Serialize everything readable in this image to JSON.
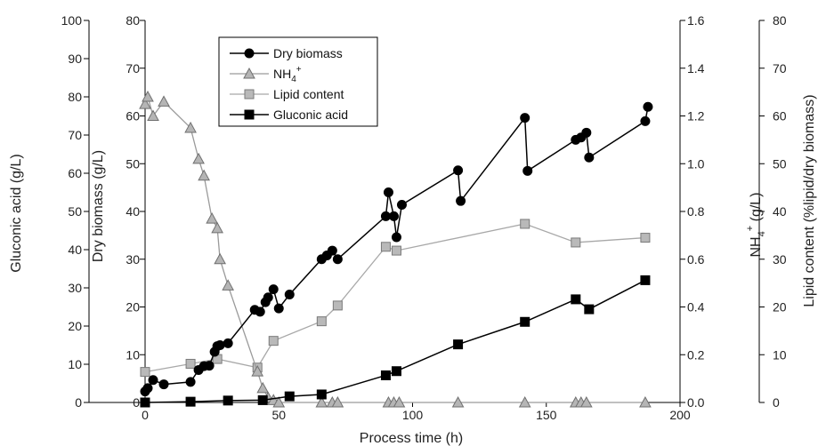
{
  "chart_data": {
    "type": "line",
    "xlabel": "Process time (h)",
    "xlim": [
      0,
      200
    ],
    "xticks": [
      "0",
      "50",
      "100",
      "150",
      "200"
    ],
    "axes": {
      "dry_biomass": {
        "label": "Dry biomass (g/L)",
        "ylim": [
          0,
          80
        ],
        "ticks": [
          "0",
          "10",
          "20",
          "30",
          "40",
          "50",
          "60",
          "70",
          "80"
        ]
      },
      "nh4": {
        "label": "NH",
        "label_sub": "4",
        "label_sup": "+",
        "label_suffix": " (g/L)",
        "ylim": [
          0,
          1.6
        ],
        "ticks": [
          "0.0",
          "0.2",
          "0.4",
          "0.6",
          "0.8",
          "1.0",
          "1.2",
          "1.4",
          "1.6"
        ]
      },
      "gluconic_acid": {
        "label": "Gluconic acid (g/L)",
        "ylim": [
          0,
          100
        ],
        "ticks": [
          "0",
          "10",
          "20",
          "30",
          "40",
          "50",
          "60",
          "70",
          "80",
          "90",
          "100"
        ]
      },
      "lipid_content": {
        "label": "Lipid content (%lipid/dry biomass)",
        "ylim": [
          0,
          80
        ],
        "ticks": [
          "0",
          "10",
          "20",
          "30",
          "40",
          "50",
          "60",
          "70",
          "80"
        ]
      }
    },
    "series": [
      {
        "name": "Dry biomass",
        "axis": "dry_biomass",
        "marker": "circle",
        "color": "#000000",
        "x": [
          0,
          1,
          3,
          7,
          17,
          20,
          22,
          24,
          26,
          27,
          28,
          31,
          41,
          43,
          45,
          46,
          48,
          50,
          54,
          66,
          68,
          70,
          72,
          90,
          91,
          93,
          94,
          96,
          117,
          118,
          142,
          143,
          161,
          163,
          165,
          166,
          187,
          188
        ],
        "y": [
          2.3,
          3,
          4.7,
          3.8,
          4.3,
          6.8,
          7.6,
          7.7,
          10.6,
          11.8,
          12,
          12.4,
          19.4,
          19,
          21,
          22,
          23.7,
          19.7,
          22.6,
          30,
          30.8,
          31.8,
          30,
          39,
          44,
          39,
          34.6,
          41.4,
          48.6,
          42.2,
          59.6,
          48.5,
          55,
          55.5,
          56.5,
          51.3,
          58.9,
          61.9
        ]
      },
      {
        "name": "NH",
        "name_sub": "4",
        "name_sup": "+",
        "axis": "nh4",
        "marker": "triangle",
        "color": "#aaaaaa",
        "x": [
          0,
          1,
          3,
          7,
          17,
          20,
          22,
          25,
          27,
          28,
          31,
          42,
          44,
          46,
          48,
          50,
          66,
          70,
          72,
          91,
          93,
          95,
          117,
          142,
          161,
          163,
          165,
          187
        ],
        "y": [
          1.25,
          1.28,
          1.2,
          1.26,
          1.15,
          1.02,
          0.95,
          0.77,
          0.73,
          0.6,
          0.49,
          0.13,
          0.06,
          0.02,
          0.01,
          0.0,
          0.0,
          0.0,
          0.0,
          0.0,
          0.0,
          0.0,
          0.0,
          0.0,
          0.0,
          0.0,
          0.0,
          0.0
        ]
      },
      {
        "name": "Lipid content",
        "axis": "lipid_content",
        "marker": "square",
        "color": "#999999",
        "x": [
          0,
          17,
          27,
          42,
          48,
          66,
          72,
          90,
          94,
          142,
          161,
          187
        ],
        "y": [
          6.4,
          8.1,
          9.1,
          7.3,
          12.9,
          17,
          20.3,
          32.6,
          31.8,
          37.4,
          33.5,
          34.5
        ]
      },
      {
        "name": "Gluconic acid",
        "axis": "gluconic_acid",
        "marker": "square",
        "color": "#000000",
        "x": [
          0,
          17,
          31,
          44,
          54,
          66,
          90,
          94,
          117,
          142,
          161,
          166,
          187
        ],
        "y": [
          0,
          0.2,
          0.5,
          0.6,
          1.6,
          2.1,
          7.1,
          8.2,
          15.2,
          21.1,
          27,
          24.4,
          32
        ]
      }
    ],
    "legend": {
      "position": "top-left"
    }
  }
}
